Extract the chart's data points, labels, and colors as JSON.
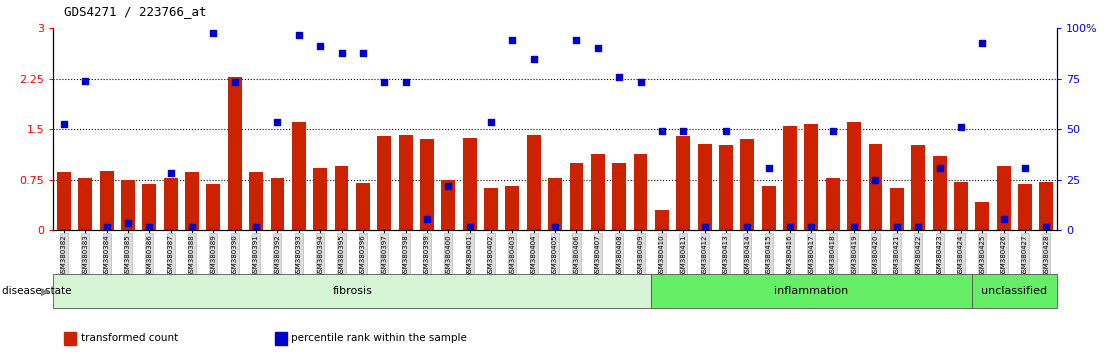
{
  "title": "GDS4271 / 223766_at",
  "samples": [
    "GSM380382",
    "GSM380383",
    "GSM380384",
    "GSM380385",
    "GSM380386",
    "GSM380387",
    "GSM380388",
    "GSM380389",
    "GSM380390",
    "GSM380391",
    "GSM380392",
    "GSM380393",
    "GSM380394",
    "GSM380395",
    "GSM380396",
    "GSM380397",
    "GSM380398",
    "GSM380399",
    "GSM380400",
    "GSM380401",
    "GSM380402",
    "GSM380403",
    "GSM380404",
    "GSM380405",
    "GSM380406",
    "GSM380407",
    "GSM380408",
    "GSM380409",
    "GSM380410",
    "GSM380411",
    "GSM380412",
    "GSM380413",
    "GSM380414",
    "GSM380415",
    "GSM380416",
    "GSM380417",
    "GSM380418",
    "GSM380419",
    "GSM380420",
    "GSM380421",
    "GSM380422",
    "GSM380423",
    "GSM380424",
    "GSM380425",
    "GSM380426",
    "GSM380427",
    "GSM380428"
  ],
  "bar_values": [
    0.87,
    0.77,
    0.88,
    0.75,
    0.68,
    0.77,
    0.87,
    0.69,
    2.28,
    0.87,
    0.78,
    1.6,
    0.93,
    0.95,
    0.7,
    1.4,
    1.41,
    1.35,
    0.75,
    1.37,
    0.63,
    0.65,
    1.41,
    0.77,
    1.0,
    1.13,
    1.0,
    1.13,
    0.3,
    1.4,
    1.28,
    1.27,
    1.35,
    0.65,
    1.55,
    1.58,
    0.77,
    1.6,
    1.28,
    0.62,
    1.27,
    1.1,
    0.72,
    0.42,
    0.95,
    0.68,
    0.72
  ],
  "blue_values": [
    1.58,
    2.22,
    0.05,
    0.1,
    0.05,
    0.85,
    0.05,
    2.93,
    2.2,
    0.05,
    1.6,
    2.9,
    2.73,
    2.63,
    2.63,
    2.2,
    2.2,
    0.17,
    0.65,
    0.05,
    1.6,
    2.83,
    2.55,
    0.05,
    2.83,
    2.7,
    2.28,
    2.2,
    1.47,
    1.47,
    0.05,
    1.47,
    0.05,
    0.92,
    0.05,
    0.05,
    1.47,
    0.05,
    0.75,
    0.05,
    0.05,
    0.92,
    1.53,
    2.78,
    0.17,
    0.92,
    0.05
  ],
  "groups": [
    {
      "label": "fibrosis",
      "start": 0,
      "end": 27,
      "facecolor": "#ccffcc"
    },
    {
      "label": "inflammation",
      "start": 28,
      "end": 42,
      "facecolor": "#66ee66"
    },
    {
      "label": "unclassified",
      "start": 43,
      "end": 46,
      "facecolor": "#66ee66"
    }
  ],
  "bar_color": "#cc2200",
  "dot_color": "#0000cc",
  "left_ylim": [
    0,
    3
  ],
  "right_ylim": [
    0,
    100
  ],
  "left_yticks": [
    0,
    0.75,
    1.5,
    2.25,
    3.0
  ],
  "left_yticklabels": [
    "0",
    "0.75",
    "1.5",
    "2.25",
    "3"
  ],
  "right_yticks": [
    0,
    25,
    50,
    75,
    100
  ],
  "right_yticklabels": [
    "0",
    "25",
    "50",
    "75",
    "100%"
  ],
  "hlines": [
    0.75,
    1.5,
    2.25
  ],
  "disease_state_label": "disease state",
  "legend": [
    {
      "label": "transformed count",
      "color": "#cc2200"
    },
    {
      "label": "percentile rank within the sample",
      "color": "#0000cc"
    }
  ]
}
